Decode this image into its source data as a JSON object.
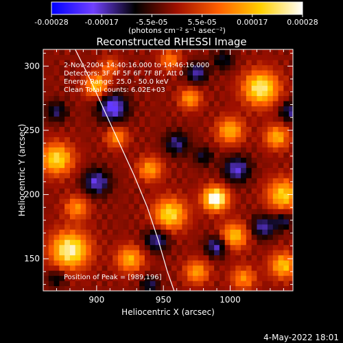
{
  "chart_data": {
    "type": "heatmap",
    "title": "Reconstructed RHESSI Image",
    "xlabel": "Heliocentric X (arcsec)",
    "ylabel": "Heliocentric Y (arcsec)",
    "xlim": [
      860,
      1047
    ],
    "ylim": [
      125,
      313
    ],
    "x_ticks": [
      "900",
      "950",
      "1000"
    ],
    "y_ticks": [
      "150",
      "200",
      "250",
      "300"
    ],
    "colorbar": {
      "range": [
        -0.00028,
        0.00028
      ],
      "tick_labels": [
        "-0.00028",
        "-0.00017",
        "-5.5e-05",
        "5.5e-05",
        "0.00017",
        "0.00028"
      ],
      "units_label": "(photons cm⁻² s⁻¹ asec⁻²)",
      "colors": [
        "#0000ff",
        "#7040ff",
        "#000000",
        "#a01000",
        "#ff6000",
        "#ffd000",
        "#ffffff"
      ]
    },
    "annotations": [
      "2-Nov-2004 14:40:16.000 to 14:46:16.000",
      "Detectors: 3F 4F 5F 6F 7F 8F, Att 0",
      "Energy Range: 25.0 - 50.0 keV",
      "Clean     Total counts: 6.02E+03"
    ],
    "peak_label": "Position of Peak = [989,196]",
    "peak": {
      "x": 989,
      "y": 196,
      "value": 0.00028
    },
    "limb_curve": {
      "x": [
        884,
        895,
        906,
        917,
        928,
        938,
        946,
        953,
        958
      ],
      "y": [
        313,
        290,
        265,
        240,
        215,
        190,
        165,
        140,
        125
      ]
    },
    "blobs": [
      {
        "x": 989,
        "y": 197,
        "v": 1.0,
        "r": 9
      },
      {
        "x": 880,
        "y": 157,
        "v": 0.85,
        "r": 14
      },
      {
        "x": 1023,
        "y": 283,
        "v": 0.8,
        "r": 13
      },
      {
        "x": 955,
        "y": 185,
        "v": 0.7,
        "r": 12
      },
      {
        "x": 1040,
        "y": 200,
        "v": 0.65,
        "r": 12
      },
      {
        "x": 870,
        "y": 228,
        "v": 0.7,
        "r": 12
      },
      {
        "x": 1003,
        "y": 168,
        "v": 0.6,
        "r": 10
      },
      {
        "x": 900,
        "y": 285,
        "v": 0.6,
        "r": 9
      },
      {
        "x": 1000,
        "y": 250,
        "v": 0.55,
        "r": 10
      },
      {
        "x": 925,
        "y": 150,
        "v": 0.55,
        "r": 10
      },
      {
        "x": 970,
        "y": 275,
        "v": 0.5,
        "r": 8
      },
      {
        "x": 1035,
        "y": 245,
        "v": 0.55,
        "r": 9
      },
      {
        "x": 940,
        "y": 220,
        "v": 0.5,
        "r": 9
      },
      {
        "x": 885,
        "y": 190,
        "v": 0.45,
        "r": 9
      },
      {
        "x": 975,
        "y": 140,
        "v": 0.5,
        "r": 9
      },
      {
        "x": 1040,
        "y": 145,
        "v": 0.6,
        "r": 10
      },
      {
        "x": 915,
        "y": 245,
        "v": 0.45,
        "r": 8
      },
      {
        "x": 1010,
        "y": 135,
        "v": 0.45,
        "r": 9
      },
      {
        "x": 955,
        "y": 305,
        "v": 0.4,
        "r": 8
      },
      {
        "x": 910,
        "y": 300,
        "v": 0.35,
        "r": 7
      },
      {
        "x": 912,
        "y": 268,
        "v": -0.6,
        "r": 11
      },
      {
        "x": 975,
        "y": 295,
        "v": -0.45,
        "r": 8
      },
      {
        "x": 1005,
        "y": 220,
        "v": -0.5,
        "r": 10
      },
      {
        "x": 960,
        "y": 240,
        "v": -0.4,
        "r": 9
      },
      {
        "x": 900,
        "y": 210,
        "v": -0.5,
        "r": 10
      },
      {
        "x": 1025,
        "y": 175,
        "v": -0.45,
        "r": 9
      },
      {
        "x": 1045,
        "y": 265,
        "v": -0.4,
        "r": 8
      },
      {
        "x": 945,
        "y": 165,
        "v": -0.45,
        "r": 9
      },
      {
        "x": 990,
        "y": 160,
        "v": -0.5,
        "r": 8
      },
      {
        "x": 1040,
        "y": 180,
        "v": -0.35,
        "r": 7
      },
      {
        "x": 870,
        "y": 265,
        "v": -0.35,
        "r": 8
      },
      {
        "x": 980,
        "y": 230,
        "v": -0.3,
        "r": 7
      },
      {
        "x": 870,
        "y": 135,
        "v": -0.3,
        "r": 7
      },
      {
        "x": 940,
        "y": 130,
        "v": -0.35,
        "r": 7
      },
      {
        "x": 995,
        "y": 305,
        "v": -0.3,
        "r": 8
      }
    ]
  },
  "footer": {
    "date": "4-May-2022 18:01"
  }
}
